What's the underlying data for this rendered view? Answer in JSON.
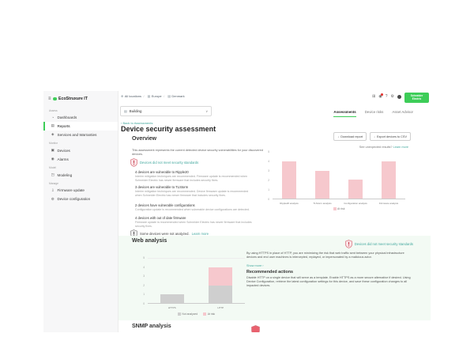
{
  "brand": {
    "app_name": "EcoStruxure IT",
    "vendor_line1": "Schneider",
    "vendor_line2": "Electric",
    "accent_green": "#3dcd58",
    "link_teal": "#43a89e",
    "risk_pink": "#f6c8cd",
    "not_analyzed_gray": "#cfcfcf"
  },
  "icons": {
    "hamburger": "≡",
    "dashboards": "◔",
    "reports": "▤",
    "services": "◈",
    "devices": "▣",
    "alarms": "◉",
    "modeling": "◳",
    "firmware": "⇩",
    "configuration": "⚙",
    "grid": "⊞",
    "alerts": "◉",
    "help": "?",
    "settings": "⚙",
    "globe": "⊕",
    "building": "▤",
    "chevron_down": "∨",
    "back": "‹",
    "download": "↓"
  },
  "sidebar": {
    "sections": [
      {
        "label": "Assess"
      },
      {
        "label": "Monitor"
      },
      {
        "label": "Model"
      },
      {
        "label": "Manage"
      }
    ],
    "items": {
      "dashboards": "Dashboards",
      "reports": "Reports",
      "services": "Services and Warranties",
      "devices": "Devices",
      "alarms": "Alarms",
      "modeling": "Modeling",
      "firmware": "Firmware update",
      "configuration": "Device configuration"
    }
  },
  "topbar": {
    "breadcrumb": [
      "All locations",
      "Europe",
      "Denmark"
    ],
    "location_filter": "Building"
  },
  "tabs": [
    {
      "label": "Assessments"
    },
    {
      "label": "Device risks"
    },
    {
      "label": "Asset Advisor"
    }
  ],
  "page": {
    "back_link": "Back to Assessments",
    "title": "Device security assessment"
  },
  "overview": {
    "heading": "Overview",
    "download_report": "Download report",
    "export_csv": "Export devices to CSV",
    "description": "This assessment represents the current detected device security vulnerabilities for your discovered devices.",
    "status_link": "Devices did not meet security standards",
    "unexpected_text": "See unexpected results?",
    "unexpected_link": "Learn more",
    "findings": [
      {
        "title": "4 devices are vulnerable to Ripple20",
        "description": "Interim mitigation techniques are recommended. Firmware update is recommended when Schneider Electric has newer firmware that includes security fixes."
      },
      {
        "title": "3 devices are vulnerable to TLStorm",
        "description": "Interim mitigation techniques are recommended. Device firmware update is recommended when Schneider Electric has newer firmware that includes security fixes."
      },
      {
        "title": "2 devices have vulnerable configurations",
        "description": "Configuration update is recommended when vulnerable device configurations are detected."
      },
      {
        "title": "4 devices with out of date firmware",
        "description": "Firmware update is recommended when Schneider Electric has newer firmware that includes security fixes."
      }
    ],
    "not_analyzed_text": "Some devices were not analyzed.",
    "not_analyzed_link": "Learn more"
  },
  "web_analysis": {
    "heading": "Web analysis",
    "status_link": "Devices did not meet security standards",
    "description": "By using HTTPS in place of HTTP, you are minimizing the risk that web traffic sent between your physical infrastructure devices and end user machines is intercepted, replayed, or impersonated by a malicious actor.",
    "show_more": "Show more ›",
    "recommended_heading": "Recommended actions",
    "recommended_text": "Disable HTTP on a single device that will serve as a template. Enable HTTPS as a more secure alternative if desired. Using Device Configuration, retrieve the latest configuration settings for this device, and save these configuration changes to all impacted devices."
  },
  "snmp": {
    "heading": "SNMP analysis"
  },
  "chart_data": [
    {
      "id": "overview-risk-chart",
      "type": "bar",
      "categories": [
        "Ripple20 analysis",
        "TLStorm analysis",
        "Configuration analysis",
        "Firmware analysis"
      ],
      "series": [
        {
          "name": "At risk",
          "color": "#f6c8cd",
          "values": [
            4,
            3,
            2,
            4
          ]
        }
      ],
      "ylim": [
        0,
        5
      ],
      "yticks": [
        0,
        1,
        2,
        3,
        4,
        5
      ],
      "legend_position": "bottom",
      "grid": false
    },
    {
      "id": "web-analysis-chart",
      "type": "stacked-bar",
      "categories": [
        "HTTPS",
        "HTTP"
      ],
      "series": [
        {
          "name": "Not analyzed",
          "color": "#cfcfcf",
          "values": [
            1,
            2
          ]
        },
        {
          "name": "At risk",
          "color": "#f6c8cd",
          "values": [
            0,
            2
          ]
        }
      ],
      "ylim": [
        0,
        5
      ],
      "yticks": [
        0,
        1,
        2,
        3,
        4,
        5
      ],
      "legend_position": "bottom",
      "grid": false
    }
  ]
}
